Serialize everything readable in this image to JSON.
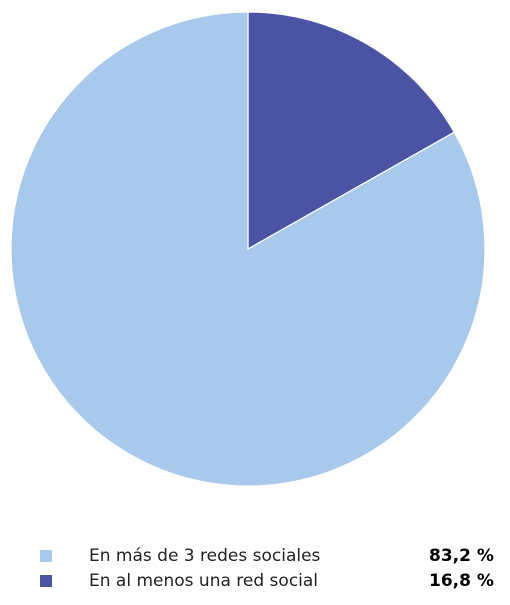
{
  "chart_data": {
    "type": "pie",
    "start_angle_deg": 0,
    "direction": "clockwise",
    "slices": [
      {
        "label": "En al menos una red social",
        "value": 16.8,
        "value_label": "16,8 %",
        "color": "#4b53a4"
      },
      {
        "label": "En más de 3 redes sociales",
        "value": 83.2,
        "value_label": "83,2 %",
        "color": "#a8c9eb"
      }
    ],
    "legend": {
      "placement": "bottom",
      "order": [
        {
          "label": "En más de 3 redes sociales",
          "value_label": "83,2 %",
          "color": "#a8c9eb"
        },
        {
          "label": "En al menos una red social",
          "value_label": "16,8 %",
          "color": "#4b53a4"
        }
      ]
    }
  }
}
